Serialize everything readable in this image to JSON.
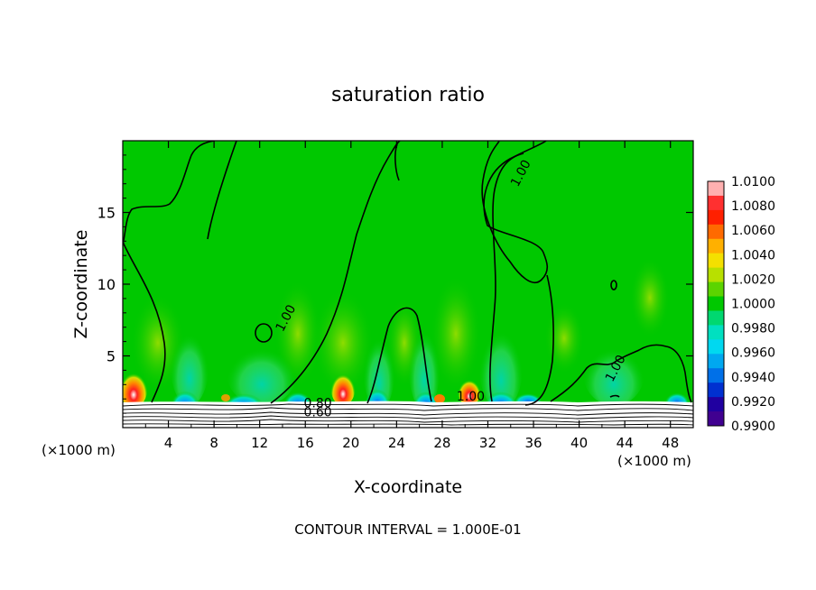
{
  "chart_data": {
    "type": "heatmap",
    "title": "saturation ratio",
    "xlabel": "X-coordinate",
    "ylabel": "Z-coordinate",
    "x_unit_left": "(×1000 m)",
    "x_unit_right": "(×1000 m)",
    "xlim": [
      0,
      50
    ],
    "ylim": [
      0,
      20
    ],
    "x_ticks": [
      4,
      8,
      12,
      16,
      20,
      24,
      28,
      32,
      36,
      40,
      44,
      48
    ],
    "y_ticks": [
      5,
      10,
      15
    ],
    "footer": "CONTOUR INTERVAL = 1.000E-01",
    "colorbar": {
      "min": 0.99,
      "max": 1.01,
      "labels": [
        "1.0100",
        "1.0080",
        "1.0060",
        "1.0040",
        "1.0020",
        "1.0000",
        "0.9980",
        "0.9960",
        "0.9940",
        "0.9920",
        "0.9900"
      ],
      "colors": [
        "#ffb0b0",
        "#ff3030",
        "#ff2000",
        "#ff6a00",
        "#ffb000",
        "#f4e000",
        "#b8e000",
        "#5cd400",
        "#00c800",
        "#00d870",
        "#00e0c0",
        "#00d8f0",
        "#00a8f0",
        "#0070e8",
        "#0030d0",
        "#2000a0",
        "#400090"
      ]
    },
    "contour_labels": [
      {
        "text": "1.00",
        "x": 14.6,
        "z": 7.5
      },
      {
        "text": "1.00",
        "x": 35.2,
        "z": 17.6
      },
      {
        "text": "1.00",
        "x": 43.5,
        "z": 4.0
      },
      {
        "text": "1.00",
        "x": 30.5,
        "z": 1.9
      },
      {
        "text": "0.80",
        "x": 17.1,
        "z": 1.4
      },
      {
        "text": "0.60",
        "x": 17.1,
        "z": 0.8
      }
    ]
  }
}
